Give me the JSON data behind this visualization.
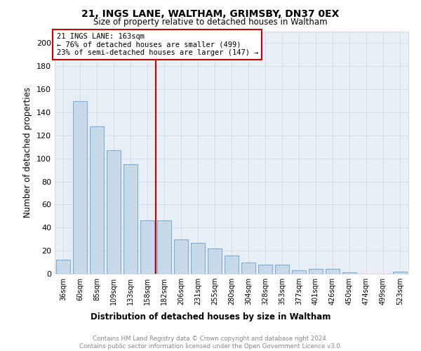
{
  "title": "21, INGS LANE, WALTHAM, GRIMSBY, DN37 0EX",
  "subtitle": "Size of property relative to detached houses in Waltham",
  "xlabel": "Distribution of detached houses by size in Waltham",
  "ylabel": "Number of detached properties",
  "footer_line1": "Contains HM Land Registry data © Crown copyright and database right 2024.",
  "footer_line2": "Contains public sector information licensed under the Open Government Licence v3.0.",
  "annotation_line1": "21 INGS LANE: 163sqm",
  "annotation_line2": "← 76% of detached houses are smaller (499)",
  "annotation_line3": "23% of semi-detached houses are larger (147) →",
  "bar_color": "#c9d9ec",
  "bar_edge_color": "#7bafd4",
  "marker_color": "#cc0000",
  "grid_color": "#d0d8e4",
  "background_color": "#ffffff",
  "plot_bg_color": "#e8eef6",
  "categories": [
    "36sqm",
    "60sqm",
    "85sqm",
    "109sqm",
    "133sqm",
    "158sqm",
    "182sqm",
    "206sqm",
    "231sqm",
    "255sqm",
    "280sqm",
    "304sqm",
    "328sqm",
    "353sqm",
    "377sqm",
    "401sqm",
    "426sqm",
    "450sqm",
    "474sqm",
    "499sqm",
    "523sqm"
  ],
  "values": [
    12,
    150,
    128,
    107,
    95,
    46,
    46,
    30,
    27,
    22,
    16,
    10,
    8,
    8,
    3,
    4,
    4,
    1,
    0,
    0,
    2
  ],
  "ylim": [
    0,
    210
  ],
  "yticks": [
    0,
    20,
    40,
    60,
    80,
    100,
    120,
    140,
    160,
    180,
    200
  ],
  "marker_bar_index": 5,
  "annotation_box_color": "#ffffff",
  "annotation_box_edge": "#cc0000",
  "title_fontsize": 10,
  "subtitle_fontsize": 9
}
